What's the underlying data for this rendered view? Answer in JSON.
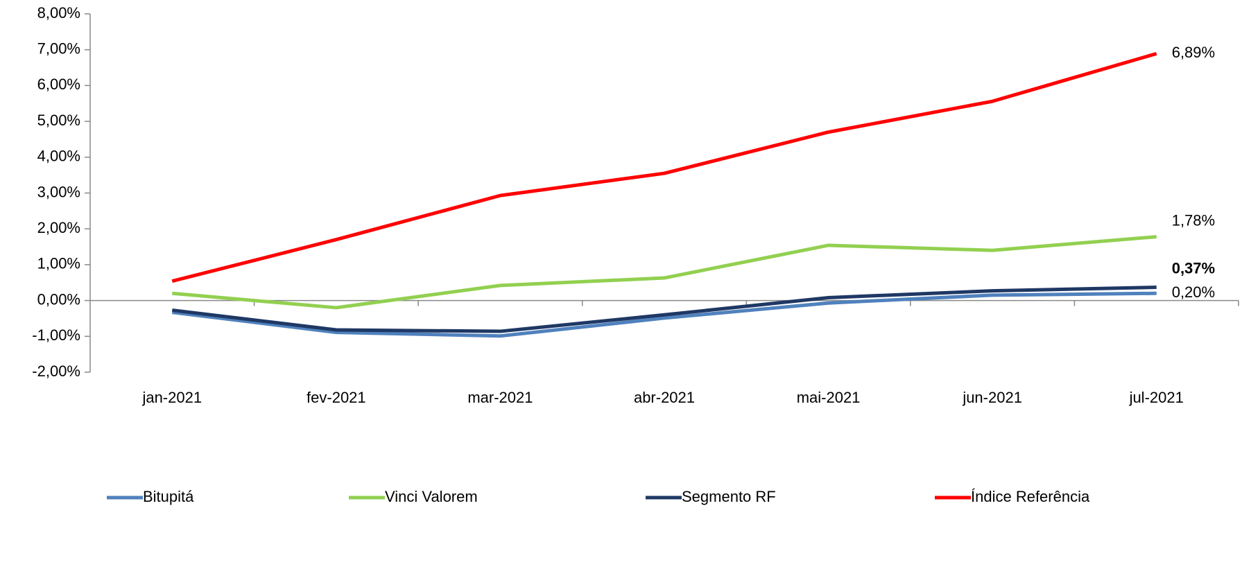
{
  "chart_data": {
    "type": "line",
    "categories": [
      "jan-2021",
      "fev-2021",
      "mar-2021",
      "abr-2021",
      "mai-2021",
      "jun-2021",
      "jul-2021"
    ],
    "series": [
      {
        "name": "Bitupitá",
        "color": "#4f81bd",
        "values": [
          -0.33,
          -0.89,
          -0.99,
          -0.49,
          -0.07,
          0.15,
          0.2
        ],
        "value_labels": [
          null,
          null,
          null,
          null,
          null,
          null,
          "0,20%"
        ],
        "label_color": "#000000",
        "label_bold": false
      },
      {
        "name": "Vinci Valorem",
        "color": "#92d050",
        "values": [
          0.2,
          -0.2,
          0.42,
          0.63,
          1.54,
          1.4,
          1.78
        ],
        "value_labels": [
          null,
          null,
          null,
          null,
          null,
          null,
          "1,78%"
        ],
        "label_color": "#000000",
        "label_bold": false
      },
      {
        "name": "Segmento RF",
        "color": "#1f3864",
        "values": [
          -0.27,
          -0.82,
          -0.86,
          -0.4,
          0.08,
          0.27,
          0.37
        ],
        "value_labels": [
          null,
          null,
          null,
          null,
          null,
          null,
          "0,37%"
        ],
        "label_color": "#1f497d",
        "label_bold": true
      },
      {
        "name": "Índice Referência",
        "color": "#ff0000",
        "values": [
          0.54,
          1.7,
          2.93,
          3.55,
          4.7,
          5.56,
          6.89
        ],
        "value_labels": [
          null,
          null,
          null,
          null,
          null,
          null,
          "6,89%"
        ],
        "label_color": "#ff0000",
        "label_bold": false
      }
    ],
    "ylim": [
      -2,
      8
    ],
    "yticks": [
      {
        "value": -2,
        "label": "-2,00%"
      },
      {
        "value": -1,
        "label": "-1,00%"
      },
      {
        "value": 0,
        "label": "0,00%"
      },
      {
        "value": 1,
        "label": "1,00%"
      },
      {
        "value": 2,
        "label": "2,00%"
      },
      {
        "value": 3,
        "label": "3,00%"
      },
      {
        "value": 4,
        "label": "4,00%"
      },
      {
        "value": 5,
        "label": "5,00%"
      },
      {
        "value": 6,
        "label": "6,00%"
      },
      {
        "value": 7,
        "label": "7,00%"
      },
      {
        "value": 8,
        "label": "8,00%"
      }
    ],
    "grid": false,
    "legend": "bottom"
  }
}
